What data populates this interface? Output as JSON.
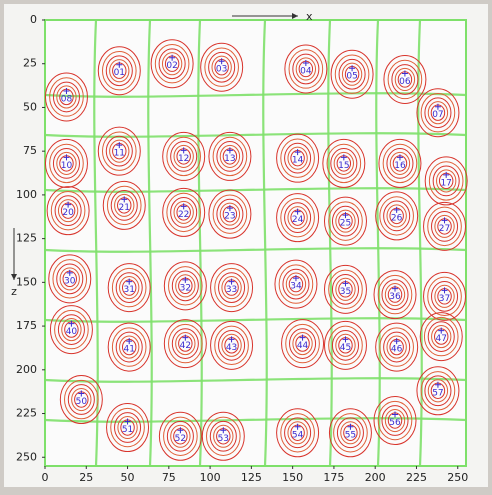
{
  "chart_data": {
    "type": "contour",
    "x_label": "x",
    "y_label": "z",
    "xlim": [
      0,
      255
    ],
    "ylim": [
      0,
      255
    ],
    "xticks": [
      0,
      25,
      50,
      75,
      100,
      125,
      150,
      175,
      200,
      225,
      250
    ],
    "yticks": [
      0,
      25,
      50,
      75,
      100,
      125,
      150,
      175,
      200,
      225,
      250
    ],
    "labels": [
      "01",
      "02",
      "03",
      "04",
      "05",
      "06",
      "07",
      "08",
      "11",
      "12",
      "13",
      "14",
      "15",
      "16",
      "17",
      "10",
      "20",
      "21",
      "22",
      "23",
      "24",
      "25",
      "26",
      "27",
      "30",
      "31",
      "32",
      "33",
      "34",
      "35",
      "36",
      "37",
      "40",
      "41",
      "42",
      "43",
      "44",
      "45",
      "46",
      "47",
      "50",
      "51",
      "52",
      "53",
      "54",
      "55",
      "56",
      "57"
    ],
    "x": [
      45,
      77,
      107,
      158,
      186,
      218,
      238,
      13,
      45,
      84,
      112,
      153,
      181,
      215,
      243,
      13,
      14,
      48,
      84,
      112,
      153,
      182,
      213,
      242,
      15,
      51,
      85,
      113,
      152,
      182,
      212,
      242,
      16,
      51,
      85,
      113,
      156,
      182,
      213,
      240,
      22,
      50,
      82,
      108,
      153,
      185,
      212,
      238
    ],
    "y": [
      29,
      25,
      27,
      28,
      31,
      34,
      53,
      44,
      75,
      78,
      78,
      79,
      82,
      82,
      92,
      82,
      109,
      106,
      110,
      111,
      113,
      115,
      112,
      118,
      148,
      153,
      152,
      153,
      151,
      154,
      157,
      158,
      177,
      187,
      185,
      186,
      185,
      186,
      187,
      181,
      217,
      233,
      238,
      238,
      236,
      236,
      229,
      212
    ]
  }
}
